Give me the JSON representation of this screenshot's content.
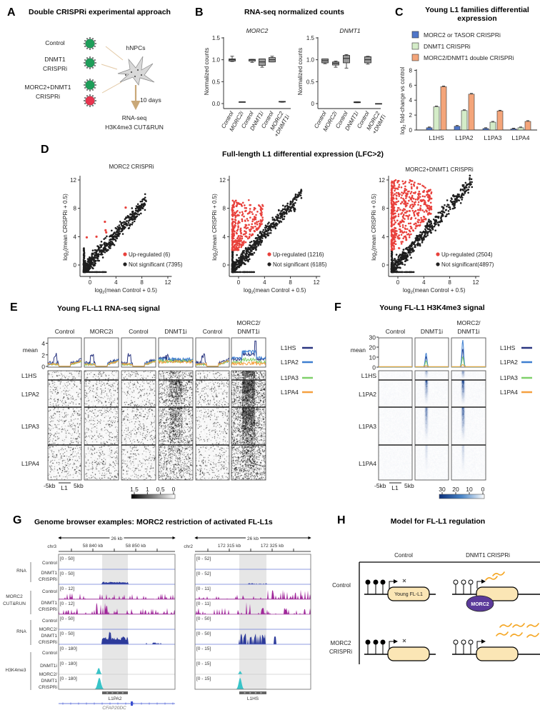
{
  "A": {
    "label": "A",
    "title": "Double CRISPRi experimental approach",
    "conditions": [
      [
        "Control"
      ],
      [
        "DNMT1",
        "CRISPRi"
      ],
      [
        "MORC2+DNMT1",
        "CRISPRi"
      ]
    ],
    "cells": "hNPCs",
    "duration": "10 days",
    "readouts": [
      "RNA-seq",
      "H3K4me3 CUT&RUN"
    ],
    "colors": {
      "virus_green": "#1e9e5a",
      "virus_red": "#e8344f",
      "arrow": "#c9a878",
      "cell": "#d9d9d9"
    }
  },
  "B": {
    "label": "B",
    "title": "RNA-seq normalized counts"
  },
  "C": {
    "label": "C",
    "title_lines": [
      "Young L1 families differential",
      "expression"
    ]
  },
  "D": {
    "label": "D",
    "title": "Full-length L1 differential expression (LFC>2)"
  },
  "E": {
    "label": "E",
    "title": "Young FL-L1 RNA-seq signal",
    "columns": [
      [
        "Control"
      ],
      [
        "MORC2i"
      ],
      [
        "Control"
      ],
      [
        "DNMT1i"
      ],
      [
        "Control"
      ],
      [
        "MORC2/",
        "DNMT1i"
      ]
    ],
    "mean_label": "mean",
    "mean_ticks": [
      "0",
      "2",
      "4"
    ],
    "rows": [
      "L1HS",
      "L1PA2",
      "L1PA3",
      "L1PA4"
    ],
    "axis": {
      "left": "-5kb",
      "mid": "L1",
      "right": "5kb"
    },
    "colorbar_ticks": [
      "1.5",
      "1",
      "0.5",
      "0"
    ],
    "legend": [
      {
        "label": "L1HS",
        "color": "#2a3580"
      },
      {
        "label": "L1PA2",
        "color": "#3f7fd0"
      },
      {
        "label": "L1PA3",
        "color": "#7fd06a"
      },
      {
        "label": "L1PA4",
        "color": "#f5a040"
      }
    ]
  },
  "F": {
    "label": "F",
    "title": "Young FL-L1 H3K4me3 signal",
    "columns": [
      [
        "Control"
      ],
      [
        "DNMT1i"
      ],
      [
        "MORC2/",
        "DNMT1i"
      ]
    ],
    "mean_label": "mean",
    "mean_ticks": [
      "0",
      "10",
      "20",
      "30"
    ],
    "rows": [
      "L1HS",
      "L1PA2",
      "L1PA3",
      "L1PA4"
    ],
    "axis": {
      "left": "-5kb",
      "mid": "L1",
      "right": "5kb"
    },
    "colorbar_ticks": [
      "30",
      "20",
      "10",
      "0"
    ],
    "legend": [
      {
        "label": "L1HS",
        "color": "#2a3580"
      },
      {
        "label": "L1PA2",
        "color": "#3f7fd0"
      },
      {
        "label": "L1PA3",
        "color": "#7fd06a"
      },
      {
        "label": "L1PA4",
        "color": "#f5a040"
      }
    ]
  },
  "G": {
    "label": "G",
    "title": "Genome browser examples: MORC2 restriction of activated FL-L1s",
    "groups": [
      [
        "RNA"
      ],
      [
        "MORC2",
        "CUT&RUN"
      ],
      [
        "RNA"
      ],
      [
        "H3K4me3"
      ]
    ],
    "track_labels": [
      [
        "Control"
      ],
      [
        "DNMT1",
        "CRISPRi"
      ],
      [
        "Control"
      ],
      [
        "DNMT1",
        "CRISPRi"
      ],
      [
        "Control"
      ],
      [
        "MORC2/",
        "DNMT1",
        "CRISPRi"
      ],
      [
        "Control"
      ],
      [
        "DNMT1i"
      ],
      [
        "MORC2/",
        "DNMT1",
        "CRISPRi"
      ]
    ],
    "left": {
      "span": "26 kb",
      "chrom": "chr3",
      "ticks": [
        "58 840 kb",
        "58 850 kb"
      ],
      "ranges": [
        "[0 - 50]",
        "[0 - 50]",
        "[0 - 12]",
        "[0 - 12]",
        "[0 - 50]",
        "[0 - 50]",
        "[0 - 180]",
        "[0 - 180]",
        "[0 - 180]"
      ],
      "element": "L1PA2",
      "gene": "CFAP20DC"
    },
    "right": {
      "span": "26 kb",
      "chrom": "chr2",
      "ticks": [
        "172 315 kb",
        "172 325 kb"
      ],
      "ranges": [
        "[0 - 52]",
        "[0 - 52]",
        "[0 - 11]",
        "[0 - 11]",
        "[0 - 50]",
        "[0 - 50]",
        "[0 - 15]",
        "[0 - 15]",
        "[0 - 15]"
      ],
      "element": "L1HS"
    },
    "colors": {
      "rna": "#2c3a9a",
      "cutrun": "#a0279a",
      "h3k4me3": "#38c4c8",
      "highlight": "#e6e6e6"
    }
  },
  "H": {
    "label": "H",
    "title": "Model for FL-L1 regulation",
    "col_headers": [
      "Control",
      "DNMT1 CRISPRi"
    ],
    "row_headers": [
      [
        "Control"
      ],
      [
        "MORC2",
        "CRISPRi"
      ]
    ],
    "element_label": "Young FL-L1",
    "protein": "MORC2",
    "colors": {
      "element": "#fbe6b5",
      "protein": "#5b3a9a",
      "rna": "#f5a623"
    }
  },
  "chart_data": [
    {
      "id": "B-MORC2",
      "type": "box",
      "title": "MORC2",
      "ylabel": "Normalized counts",
      "ylim": [
        0,
        1.5
      ],
      "yticks": [
        "0.0",
        "0.5",
        "1.0",
        "1.5"
      ],
      "ytick_values": [
        0,
        0.5,
        1.0,
        1.5
      ],
      "categories": [
        [
          "Control"
        ],
        [
          "MORC2i"
        ],
        [
          "Control"
        ],
        [
          "DNMT1i"
        ],
        [
          "Control"
        ],
        [
          "MORC2",
          "+DNMT1i"
        ]
      ],
      "boxes": [
        {
          "min": 0.96,
          "q1": 0.97,
          "median": 1.0,
          "q3": 1.02,
          "max": 1.08
        },
        {
          "min": 0.04,
          "q1": 0.04,
          "median": 0.04,
          "q3": 0.04,
          "max": 0.04
        },
        {
          "min": 0.94,
          "q1": 0.97,
          "median": 1.0,
          "q3": 1.01,
          "max": 1.01
        },
        {
          "min": 0.83,
          "q1": 0.87,
          "median": 0.95,
          "q3": 1.02,
          "max": 1.02
        },
        {
          "min": 0.95,
          "q1": 0.95,
          "median": 1.0,
          "q3": 1.05,
          "max": 1.08
        },
        {
          "min": 0.03,
          "q1": 0.035,
          "median": 0.04,
          "q3": 0.05,
          "max": 0.05
        }
      ]
    },
    {
      "id": "B-DNMT1",
      "type": "box",
      "title": "DNMT1",
      "ylabel": "Normalized counts",
      "ylim": [
        0,
        1.5
      ],
      "yticks": [
        "0",
        "0.5",
        "1.0",
        "1.5"
      ],
      "ytick_values": [
        0,
        0.5,
        1.0,
        1.5
      ],
      "categories": [
        [
          "Control"
        ],
        [
          "MORC2i"
        ],
        [
          "Control"
        ],
        [
          "DNMT1i"
        ],
        [
          "Control"
        ],
        [
          "MORC2",
          "+DNMTi"
        ]
      ],
      "boxes": [
        {
          "min": 0.91,
          "q1": 0.93,
          "median": 0.98,
          "q3": 1.02,
          "max": 1.02
        },
        {
          "min": 0.83,
          "q1": 0.88,
          "median": 0.92,
          "q3": 0.95,
          "max": 0.97
        },
        {
          "min": 0.81,
          "q1": 0.93,
          "median": 1.03,
          "q3": 1.1,
          "max": 1.12
        },
        {
          "min": 0.02,
          "q1": 0.02,
          "median": 0.03,
          "q3": 0.04,
          "max": 0.04
        },
        {
          "min": 0.9,
          "q1": 0.93,
          "median": 1.0,
          "q3": 1.07,
          "max": 1.08
        },
        {
          "min": 0.0,
          "q1": 0.0,
          "median": 0.0,
          "q3": 0.0,
          "max": 0.0
        }
      ]
    },
    {
      "id": "C",
      "type": "bar",
      "title": "Young L1 families differential expression",
      "categories": [
        "L1HS",
        "L1PA2",
        "L1PA3",
        "L1PA4"
      ],
      "series": [
        {
          "name": "MORC2 or TASOR CRISPRi",
          "color": "#4f76c8",
          "values": [
            0.3,
            0.5,
            0.2,
            0.15
          ]
        },
        {
          "name": "DNMT1 CRISPRi",
          "color": "#d4ecc8",
          "values": [
            3.1,
            2.6,
            1.05,
            0.3
          ]
        },
        {
          "name": "MORC2/DNMT1 double CRISPRi",
          "color": "#f4a57a",
          "values": [
            5.8,
            4.8,
            2.55,
            1.15
          ]
        }
      ],
      "ylabel_parts": [
        "log",
        "2",
        " fold-change vs control"
      ],
      "ylim": [
        0,
        8
      ],
      "yticks": [
        "0",
        "2",
        "4",
        "6",
        "8"
      ],
      "ytick_values": [
        0,
        2,
        4,
        6,
        8
      ]
    },
    {
      "id": "D1",
      "type": "scatter",
      "title": "MORC2 CRISPRi",
      "xlabel_parts": [
        "log",
        "2",
        "(mean Control + 0.5)"
      ],
      "ylabel_parts": [
        "log",
        "2",
        "(mean CRISPRi + 0.5)"
      ],
      "xlim": [
        -1.5,
        12.5
      ],
      "ylim": [
        -1.6,
        12.6
      ],
      "xticks": [
        "0",
        "4",
        "8",
        "12"
      ],
      "yticks": [
        "0",
        "4",
        "8",
        "12"
      ],
      "tick_values": [
        0,
        4,
        8,
        12
      ],
      "legend": [
        {
          "label": "Up-regulated (6)",
          "color": "#e8413c"
        },
        {
          "label": "Not significant (7395)",
          "color": "#222222"
        }
      ],
      "up_count": 6,
      "ns_count": 7395,
      "max_value": 8.7,
      "up_points": [
        [
          -0.5,
          3.9
        ],
        [
          1.0,
          4.0
        ],
        [
          2.3,
          6.1
        ],
        [
          2.5,
          4.6
        ],
        [
          2.4,
          4.9
        ],
        [
          5.5,
          8.1
        ]
      ]
    },
    {
      "id": "D2",
      "type": "scatter",
      "title": "",
      "xlabel_parts": [
        "log",
        "2",
        "(mean Control + 0.5)"
      ],
      "ylabel_parts": [
        "log",
        "2",
        "(mean CRISPRi + 0.5)"
      ],
      "xlim": [
        -1.5,
        12.5
      ],
      "ylim": [
        -1.6,
        12.6
      ],
      "xticks": [
        "0",
        "4",
        "8",
        "12"
      ],
      "yticks": [
        "0",
        "4",
        "8",
        "12"
      ],
      "tick_values": [
        0,
        4,
        8,
        12
      ],
      "legend": [
        {
          "label": "Up-regulated (1216)",
          "color": "#e8413c"
        },
        {
          "label": "Not significant (6185)",
          "color": "#222222"
        }
      ],
      "up_count": 1216,
      "ns_count": 6185,
      "max_value": 9.7,
      "up_max": 9.2
    },
    {
      "id": "D3",
      "type": "scatter",
      "title": "MORC2+DNMT1 CRISPRi",
      "xlabel_parts": [
        "log",
        "2",
        "(mean Control + 0.5)"
      ],
      "ylabel_parts": [
        "log",
        "2",
        "(mean CRISPRi + 0.5)"
      ],
      "xlim": [
        -1.5,
        12.5
      ],
      "ylim": [
        -1.6,
        12.6
      ],
      "xticks": [
        "0",
        "4",
        "8",
        "12"
      ],
      "yticks": [
        "0",
        "4",
        "8",
        "12"
      ],
      "tick_values": [
        0,
        4,
        8,
        12
      ],
      "legend": [
        {
          "label": "Up-regulated (2504)",
          "color": "#e8413c"
        },
        {
          "label": "Not significant(4897)",
          "color": "#222222"
        }
      ],
      "up_count": 2504,
      "ns_count": 4897,
      "max_value": 11.5,
      "up_max": 12.0
    }
  ]
}
